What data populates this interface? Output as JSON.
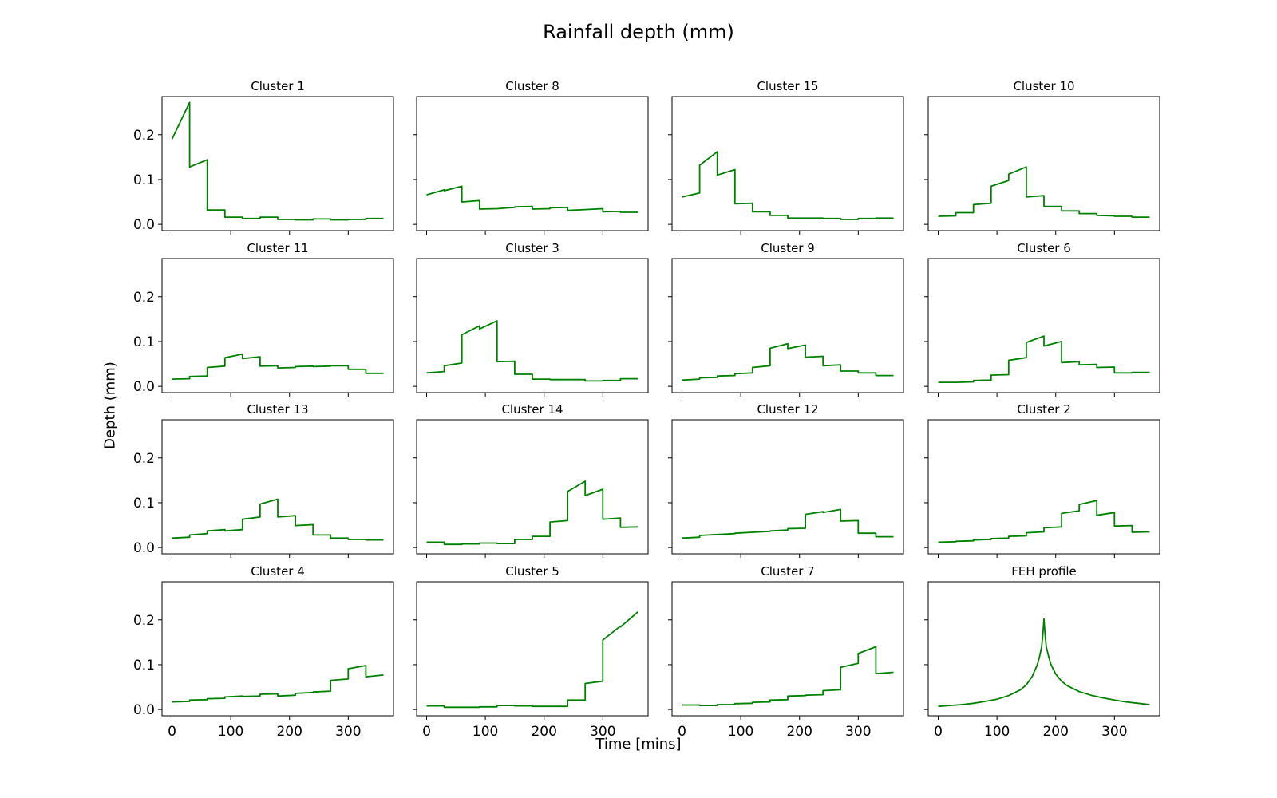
{
  "chart_data": {
    "type": "line",
    "title": "Rainfall depth (mm)",
    "xlabel": "Time [mins]",
    "ylabel": "Depth (mm)",
    "xlim": [
      -17,
      377
    ],
    "ylim": [
      -0.014,
      0.285
    ],
    "xticks": [
      0,
      100,
      200,
      300
    ],
    "yticks": [
      0.0,
      0.1,
      0.2
    ],
    "ytick_labels": [
      "0.0",
      "0.1",
      "0.2"
    ],
    "line_color": "#008000",
    "grid": false,
    "panels": [
      {
        "title": "Cluster 1",
        "x": [
          0,
          30,
          30,
          60,
          60,
          90,
          90,
          120,
          120,
          150,
          150,
          180,
          180,
          210,
          210,
          240,
          240,
          270,
          270,
          300,
          300,
          330,
          330,
          360
        ],
        "y": [
          0.19,
          0.272,
          0.128,
          0.144,
          0.032,
          0.032,
          0.016,
          0.016,
          0.013,
          0.013,
          0.016,
          0.016,
          0.011,
          0.011,
          0.01,
          0.01,
          0.012,
          0.012,
          0.01,
          0.01,
          0.011,
          0.011,
          0.013,
          0.013
        ]
      },
      {
        "title": "Cluster 8",
        "x": [
          0,
          30,
          30,
          60,
          60,
          90,
          90,
          120,
          120,
          150,
          150,
          180,
          180,
          210,
          210,
          240,
          240,
          270,
          270,
          300,
          300,
          330,
          330,
          360
        ],
        "y": [
          0.066,
          0.077,
          0.075,
          0.085,
          0.05,
          0.053,
          0.034,
          0.035,
          0.035,
          0.038,
          0.039,
          0.04,
          0.034,
          0.035,
          0.037,
          0.038,
          0.031,
          0.033,
          0.033,
          0.035,
          0.028,
          0.029,
          0.027,
          0.027
        ]
      },
      {
        "title": "Cluster 15",
        "x": [
          0,
          30,
          30,
          60,
          60,
          90,
          90,
          120,
          120,
          150,
          150,
          180,
          180,
          210,
          210,
          240,
          240,
          270,
          270,
          300,
          300,
          330,
          330,
          360
        ],
        "y": [
          0.061,
          0.07,
          0.132,
          0.162,
          0.11,
          0.122,
          0.046,
          0.047,
          0.028,
          0.028,
          0.02,
          0.02,
          0.014,
          0.014,
          0.014,
          0.014,
          0.013,
          0.013,
          0.011,
          0.011,
          0.013,
          0.013,
          0.014,
          0.014
        ]
      },
      {
        "title": "Cluster 10",
        "x": [
          0,
          30,
          30,
          60,
          60,
          90,
          90,
          120,
          120,
          150,
          150,
          180,
          180,
          210,
          210,
          240,
          240,
          270,
          270,
          300,
          300,
          330,
          330,
          360
        ],
        "y": [
          0.018,
          0.019,
          0.026,
          0.026,
          0.044,
          0.047,
          0.085,
          0.098,
          0.112,
          0.128,
          0.061,
          0.064,
          0.04,
          0.04,
          0.03,
          0.03,
          0.024,
          0.024,
          0.02,
          0.019,
          0.018,
          0.018,
          0.016,
          0.016
        ]
      },
      {
        "title": "Cluster 11",
        "x": [
          0,
          30,
          30,
          60,
          60,
          90,
          90,
          120,
          120,
          150,
          150,
          180,
          180,
          210,
          210,
          240,
          240,
          270,
          270,
          300,
          300,
          330,
          330,
          360
        ],
        "y": [
          0.016,
          0.017,
          0.022,
          0.023,
          0.042,
          0.045,
          0.064,
          0.072,
          0.062,
          0.066,
          0.045,
          0.046,
          0.041,
          0.042,
          0.044,
          0.045,
          0.044,
          0.045,
          0.046,
          0.046,
          0.038,
          0.038,
          0.029,
          0.029
        ]
      },
      {
        "title": "Cluster 3",
        "x": [
          0,
          30,
          30,
          60,
          60,
          90,
          90,
          120,
          120,
          150,
          150,
          180,
          180,
          210,
          210,
          240,
          240,
          270,
          270,
          300,
          300,
          330,
          330,
          360
        ],
        "y": [
          0.03,
          0.033,
          0.046,
          0.052,
          0.115,
          0.135,
          0.128,
          0.146,
          0.055,
          0.056,
          0.027,
          0.027,
          0.016,
          0.016,
          0.015,
          0.015,
          0.015,
          0.015,
          0.012,
          0.012,
          0.013,
          0.013,
          0.017,
          0.017
        ]
      },
      {
        "title": "Cluster 9",
        "x": [
          0,
          30,
          30,
          60,
          60,
          90,
          90,
          120,
          120,
          150,
          150,
          180,
          180,
          210,
          210,
          240,
          240,
          270,
          270,
          300,
          300,
          330,
          330,
          360
        ],
        "y": [
          0.014,
          0.016,
          0.019,
          0.02,
          0.023,
          0.024,
          0.028,
          0.03,
          0.042,
          0.046,
          0.085,
          0.095,
          0.084,
          0.092,
          0.065,
          0.067,
          0.046,
          0.048,
          0.034,
          0.034,
          0.03,
          0.03,
          0.024,
          0.024
        ]
      },
      {
        "title": "Cluster 6",
        "x": [
          0,
          30,
          30,
          60,
          60,
          90,
          90,
          120,
          120,
          150,
          150,
          180,
          180,
          210,
          210,
          240,
          240,
          270,
          270,
          300,
          300,
          330,
          330,
          360
        ],
        "y": [
          0.009,
          0.009,
          0.009,
          0.01,
          0.013,
          0.014,
          0.025,
          0.026,
          0.058,
          0.064,
          0.098,
          0.112,
          0.09,
          0.1,
          0.053,
          0.055,
          0.048,
          0.049,
          0.042,
          0.043,
          0.03,
          0.03,
          0.031,
          0.031
        ]
      },
      {
        "title": "Cluster 13",
        "x": [
          0,
          30,
          30,
          60,
          60,
          90,
          90,
          120,
          120,
          150,
          150,
          180,
          180,
          210,
          210,
          240,
          240,
          270,
          270,
          300,
          300,
          330,
          330,
          360
        ],
        "y": [
          0.021,
          0.023,
          0.028,
          0.031,
          0.037,
          0.04,
          0.037,
          0.04,
          0.063,
          0.068,
          0.097,
          0.108,
          0.068,
          0.071,
          0.049,
          0.051,
          0.028,
          0.028,
          0.021,
          0.021,
          0.018,
          0.018,
          0.017,
          0.017
        ]
      },
      {
        "title": "Cluster 14",
        "x": [
          0,
          30,
          30,
          60,
          60,
          90,
          90,
          120,
          120,
          150,
          150,
          180,
          180,
          210,
          210,
          240,
          240,
          270,
          270,
          300,
          300,
          330,
          330,
          360
        ],
        "y": [
          0.012,
          0.012,
          0.007,
          0.007,
          0.008,
          0.008,
          0.01,
          0.01,
          0.009,
          0.009,
          0.018,
          0.018,
          0.025,
          0.025,
          0.057,
          0.06,
          0.125,
          0.148,
          0.116,
          0.13,
          0.063,
          0.066,
          0.045,
          0.046
        ]
      },
      {
        "title": "Cluster 12",
        "x": [
          0,
          30,
          30,
          60,
          60,
          90,
          90,
          120,
          120,
          150,
          150,
          180,
          180,
          210,
          210,
          240,
          240,
          270,
          270,
          300,
          300,
          330,
          330,
          360
        ],
        "y": [
          0.021,
          0.023,
          0.027,
          0.029,
          0.029,
          0.031,
          0.032,
          0.034,
          0.034,
          0.036,
          0.037,
          0.039,
          0.042,
          0.043,
          0.074,
          0.08,
          0.078,
          0.085,
          0.059,
          0.06,
          0.032,
          0.032,
          0.024,
          0.024
        ]
      },
      {
        "title": "Cluster 2",
        "x": [
          0,
          30,
          30,
          60,
          60,
          90,
          90,
          120,
          120,
          150,
          150,
          180,
          180,
          210,
          210,
          240,
          240,
          270,
          270,
          300,
          300,
          330,
          330,
          360
        ],
        "y": [
          0.012,
          0.013,
          0.014,
          0.015,
          0.017,
          0.018,
          0.02,
          0.021,
          0.025,
          0.026,
          0.033,
          0.035,
          0.044,
          0.046,
          0.076,
          0.082,
          0.096,
          0.105,
          0.072,
          0.078,
          0.048,
          0.049,
          0.034,
          0.035
        ]
      },
      {
        "title": "Cluster 4",
        "x": [
          0,
          30,
          30,
          60,
          60,
          90,
          90,
          120,
          120,
          150,
          150,
          180,
          180,
          210,
          210,
          240,
          240,
          270,
          270,
          300,
          300,
          330,
          330,
          360
        ],
        "y": [
          0.017,
          0.018,
          0.021,
          0.022,
          0.024,
          0.025,
          0.028,
          0.03,
          0.029,
          0.03,
          0.034,
          0.035,
          0.03,
          0.032,
          0.036,
          0.038,
          0.039,
          0.041,
          0.065,
          0.068,
          0.091,
          0.098,
          0.073,
          0.077
        ]
      },
      {
        "title": "Cluster 5",
        "x": [
          0,
          30,
          30,
          60,
          60,
          90,
          90,
          120,
          120,
          150,
          150,
          180,
          180,
          210,
          210,
          240,
          240,
          270,
          270,
          300,
          300,
          330,
          330,
          360
        ],
        "y": [
          0.008,
          0.008,
          0.005,
          0.005,
          0.005,
          0.005,
          0.006,
          0.006,
          0.009,
          0.009,
          0.008,
          0.008,
          0.007,
          0.007,
          0.007,
          0.007,
          0.021,
          0.021,
          0.058,
          0.063,
          0.155,
          0.186,
          0.184,
          0.218
        ]
      },
      {
        "title": "Cluster 7",
        "x": [
          0,
          30,
          30,
          60,
          60,
          90,
          90,
          120,
          120,
          150,
          150,
          180,
          180,
          210,
          210,
          240,
          240,
          270,
          270,
          300,
          300,
          330,
          330,
          360
        ],
        "y": [
          0.01,
          0.01,
          0.009,
          0.009,
          0.011,
          0.011,
          0.013,
          0.014,
          0.016,
          0.017,
          0.021,
          0.022,
          0.03,
          0.031,
          0.032,
          0.033,
          0.042,
          0.044,
          0.094,
          0.103,
          0.125,
          0.14,
          0.08,
          0.083
        ]
      },
      {
        "title": "FEH profile",
        "x": [
          0,
          20,
          40,
          60,
          80,
          100,
          120,
          140,
          150,
          160,
          168,
          172,
          176,
          178,
          180,
          182,
          184,
          188,
          192,
          200,
          210,
          220,
          240,
          260,
          280,
          300,
          320,
          340,
          360
        ],
        "y": [
          0.007,
          0.009,
          0.011,
          0.014,
          0.018,
          0.023,
          0.031,
          0.044,
          0.055,
          0.074,
          0.098,
          0.115,
          0.14,
          0.165,
          0.202,
          0.165,
          0.14,
          0.118,
          0.1,
          0.079,
          0.063,
          0.053,
          0.04,
          0.032,
          0.026,
          0.021,
          0.017,
          0.014,
          0.011
        ]
      }
    ]
  }
}
